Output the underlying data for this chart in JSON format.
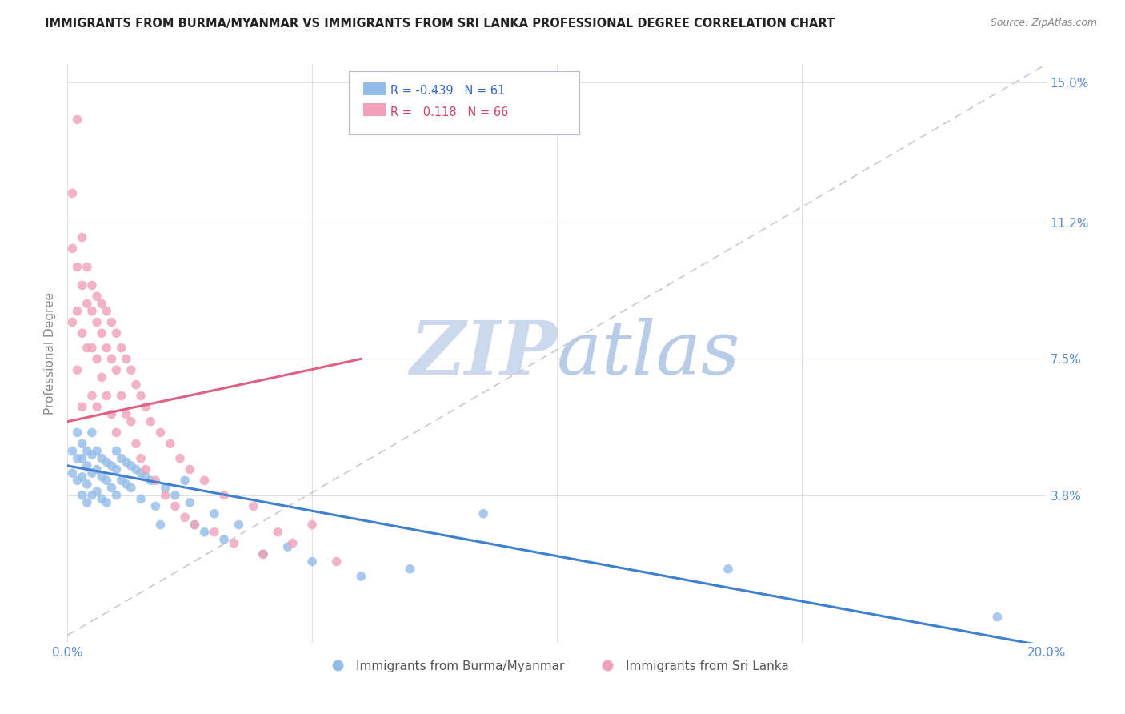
{
  "title": "IMMIGRANTS FROM BURMA/MYANMAR VS IMMIGRANTS FROM SRI LANKA PROFESSIONAL DEGREE CORRELATION CHART",
  "source": "Source: ZipAtlas.com",
  "ylabel": "Professional Degree",
  "xlim": [
    0.0,
    0.2
  ],
  "ylim": [
    -0.002,
    0.155
  ],
  "xticks": [
    0.0,
    0.05,
    0.1,
    0.15,
    0.2
  ],
  "xticklabels": [
    "0.0%",
    "",
    "",
    "",
    "20.0%"
  ],
  "ytick_positions": [
    0.038,
    0.075,
    0.112,
    0.15
  ],
  "yticklabels": [
    "3.8%",
    "7.5%",
    "11.2%",
    "15.0%"
  ],
  "blue_R": -0.439,
  "blue_N": 61,
  "pink_R": 0.118,
  "pink_N": 66,
  "blue_color": "#92bce8",
  "pink_color": "#f0a0b8",
  "blue_line_color": "#4080d0",
  "pink_line_color": "#e06080",
  "ref_line_color": "#c8c8d8",
  "watermark_color": "#ccd8ee",
  "background_color": "#ffffff",
  "grid_color": "#e0e0ec",
  "blue_trend_x0": 0.0,
  "blue_trend_y0": 0.046,
  "blue_trend_x1": 0.2,
  "blue_trend_y1": -0.003,
  "pink_trend_x0": 0.0,
  "pink_trend_y0": 0.058,
  "pink_trend_x1": 0.06,
  "pink_trend_y1": 0.075,
  "blue_scatter_x": [
    0.001,
    0.001,
    0.002,
    0.002,
    0.002,
    0.003,
    0.003,
    0.003,
    0.003,
    0.004,
    0.004,
    0.004,
    0.004,
    0.005,
    0.005,
    0.005,
    0.005,
    0.006,
    0.006,
    0.006,
    0.007,
    0.007,
    0.007,
    0.008,
    0.008,
    0.008,
    0.009,
    0.009,
    0.01,
    0.01,
    0.01,
    0.011,
    0.011,
    0.012,
    0.012,
    0.013,
    0.013,
    0.014,
    0.015,
    0.015,
    0.016,
    0.017,
    0.018,
    0.019,
    0.02,
    0.022,
    0.024,
    0.025,
    0.026,
    0.028,
    0.03,
    0.032,
    0.035,
    0.04,
    0.045,
    0.05,
    0.06,
    0.07,
    0.085,
    0.135,
    0.19
  ],
  "blue_scatter_y": [
    0.05,
    0.044,
    0.055,
    0.048,
    0.042,
    0.052,
    0.048,
    0.043,
    0.038,
    0.05,
    0.046,
    0.041,
    0.036,
    0.055,
    0.049,
    0.044,
    0.038,
    0.05,
    0.045,
    0.039,
    0.048,
    0.043,
    0.037,
    0.047,
    0.042,
    0.036,
    0.046,
    0.04,
    0.05,
    0.045,
    0.038,
    0.048,
    0.042,
    0.047,
    0.041,
    0.046,
    0.04,
    0.045,
    0.044,
    0.037,
    0.043,
    0.042,
    0.035,
    0.03,
    0.04,
    0.038,
    0.042,
    0.036,
    0.03,
    0.028,
    0.033,
    0.026,
    0.03,
    0.022,
    0.024,
    0.02,
    0.016,
    0.018,
    0.033,
    0.018,
    0.005
  ],
  "pink_scatter_x": [
    0.001,
    0.001,
    0.001,
    0.002,
    0.002,
    0.002,
    0.002,
    0.003,
    0.003,
    0.003,
    0.003,
    0.004,
    0.004,
    0.004,
    0.005,
    0.005,
    0.005,
    0.005,
    0.006,
    0.006,
    0.006,
    0.006,
    0.007,
    0.007,
    0.007,
    0.008,
    0.008,
    0.008,
    0.009,
    0.009,
    0.009,
    0.01,
    0.01,
    0.01,
    0.011,
    0.011,
    0.012,
    0.012,
    0.013,
    0.013,
    0.014,
    0.014,
    0.015,
    0.015,
    0.016,
    0.016,
    0.017,
    0.018,
    0.019,
    0.02,
    0.021,
    0.022,
    0.023,
    0.024,
    0.025,
    0.026,
    0.028,
    0.03,
    0.032,
    0.034,
    0.038,
    0.04,
    0.043,
    0.046,
    0.05,
    0.055
  ],
  "pink_scatter_y": [
    0.12,
    0.105,
    0.085,
    0.14,
    0.1,
    0.088,
    0.072,
    0.108,
    0.095,
    0.082,
    0.062,
    0.1,
    0.09,
    0.078,
    0.095,
    0.088,
    0.078,
    0.065,
    0.092,
    0.085,
    0.075,
    0.062,
    0.09,
    0.082,
    0.07,
    0.088,
    0.078,
    0.065,
    0.085,
    0.075,
    0.06,
    0.082,
    0.072,
    0.055,
    0.078,
    0.065,
    0.075,
    0.06,
    0.072,
    0.058,
    0.068,
    0.052,
    0.065,
    0.048,
    0.062,
    0.045,
    0.058,
    0.042,
    0.055,
    0.038,
    0.052,
    0.035,
    0.048,
    0.032,
    0.045,
    0.03,
    0.042,
    0.028,
    0.038,
    0.025,
    0.035,
    0.022,
    0.028,
    0.025,
    0.03,
    0.02
  ]
}
